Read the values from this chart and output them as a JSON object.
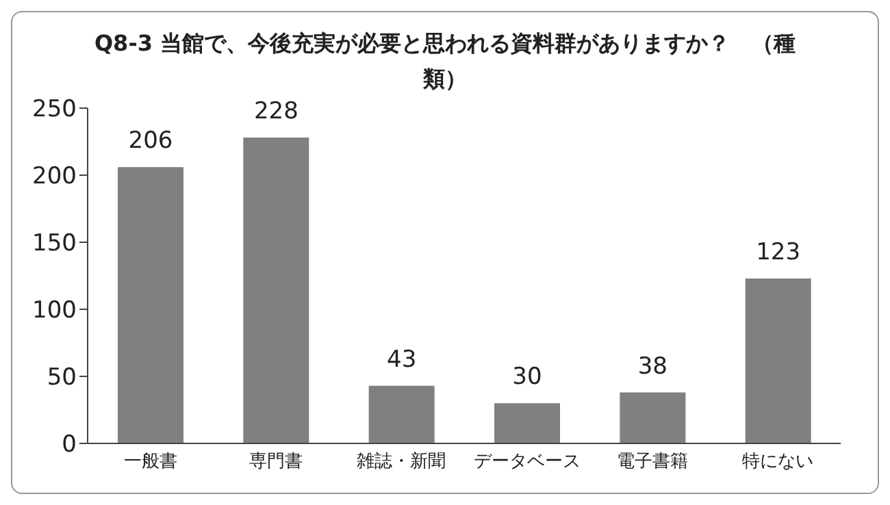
{
  "chart_data": {
    "type": "bar",
    "title": "Q8-3 当館で、今後充実が必要と思われる資料群がありますか？　（種類）",
    "categories": [
      "一般書",
      "専門書",
      "雑誌・新聞",
      "データベース",
      "電子書籍",
      "特にない"
    ],
    "values": [
      206,
      228,
      43,
      30,
      38,
      123
    ],
    "color": "#808080",
    "ylim": [
      0,
      250
    ],
    "yticks": [
      0,
      50,
      100,
      150,
      200,
      250
    ],
    "data_labels": true
  }
}
